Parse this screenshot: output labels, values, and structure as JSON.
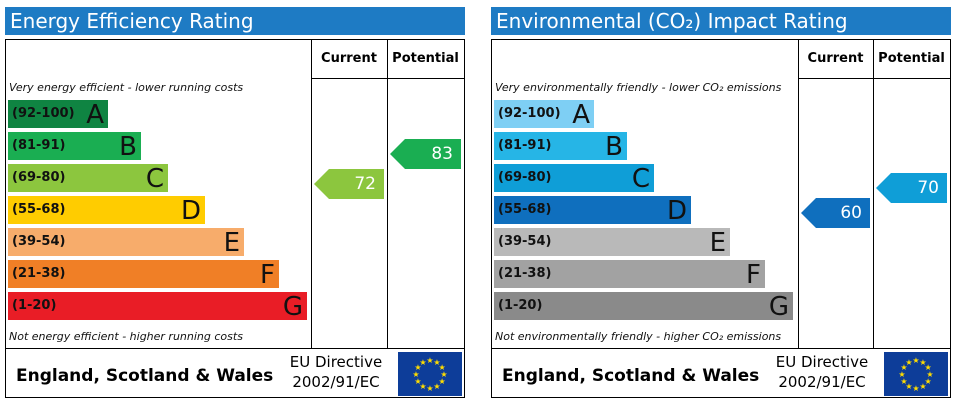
{
  "chart_data": [
    {
      "type": "bar",
      "title": "Energy Efficiency Rating",
      "column_current": "Current",
      "column_potential": "Potential",
      "note_top": "Very energy efficient - lower running costs",
      "note_bottom": "Not energy efficient - higher running costs",
      "bands": [
        {
          "range": "(92-100)",
          "letter": "A",
          "color": "#0f8442"
        },
        {
          "range": "(81-91)",
          "letter": "B",
          "color": "#1aae52"
        },
        {
          "range": "(69-80)",
          "letter": "C",
          "color": "#8cc63e"
        },
        {
          "range": "(55-68)",
          "letter": "D",
          "color": "#ffcc00"
        },
        {
          "range": "(39-54)",
          "letter": "E",
          "color": "#f7ac6b"
        },
        {
          "range": "(21-38)",
          "letter": "F",
          "color": "#f07f26"
        },
        {
          "range": "(1-20)",
          "letter": "G",
          "color": "#e91d26"
        }
      ],
      "current": {
        "value": 72,
        "label": "72",
        "color": "#8cc63e"
      },
      "potential": {
        "value": 83,
        "label": "83",
        "color": "#1aae52"
      },
      "footer_region": "England, Scotland & Wales",
      "footer_directive_1": "EU Directive",
      "footer_directive_2": "2002/91/EC"
    },
    {
      "type": "bar",
      "title": "Environmental (CO₂) Impact Rating",
      "column_current": "Current",
      "column_potential": "Potential",
      "note_top": "Very environmentally friendly - lower CO₂ emissions",
      "note_bottom": "Not environmentally friendly - higher CO₂ emissions",
      "bands": [
        {
          "range": "(92-100)",
          "letter": "A",
          "color": "#7ecff4"
        },
        {
          "range": "(81-91)",
          "letter": "B",
          "color": "#26b5e6"
        },
        {
          "range": "(69-80)",
          "letter": "C",
          "color": "#0f9ed7"
        },
        {
          "range": "(55-68)",
          "letter": "D",
          "color": "#0f6fbe"
        },
        {
          "range": "(39-54)",
          "letter": "E",
          "color": "#b9b9b9"
        },
        {
          "range": "(21-38)",
          "letter": "F",
          "color": "#a2a2a2"
        },
        {
          "range": "(1-20)",
          "letter": "G",
          "color": "#8a8a8a"
        }
      ],
      "current": {
        "value": 60,
        "label": "60",
        "color": "#0f6fbe"
      },
      "potential": {
        "value": 70,
        "label": "70",
        "color": "#0f9ed7"
      },
      "footer_region": "England, Scotland & Wales",
      "footer_directive_1": "EU Directive",
      "footer_directive_2": "2002/91/EC"
    }
  ]
}
